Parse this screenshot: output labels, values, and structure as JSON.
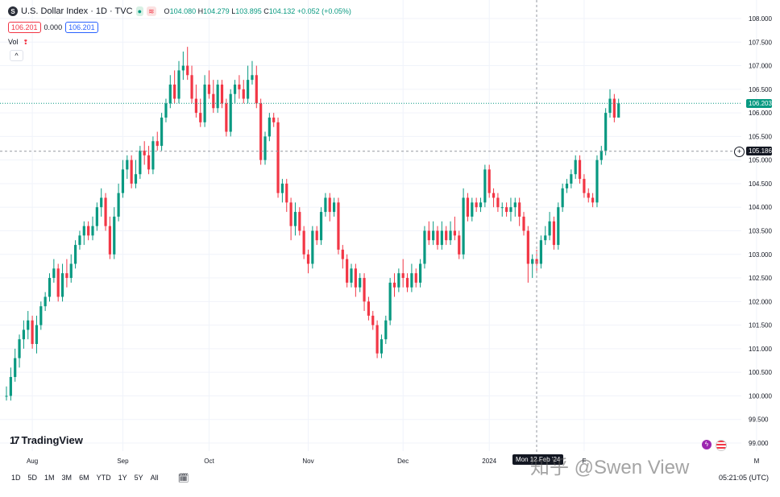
{
  "header": {
    "symbol_icon": "S",
    "title": "U.S. Dollar Index · 1D · TVC",
    "market_open_icon": "market-status-icon",
    "ohlc": {
      "o": "104.080",
      "h": "104.279",
      "l": "103.895",
      "c": "104.132",
      "chg": "+0.052 (+0.05%)"
    },
    "sell_price": "106.201",
    "spread": "0.000",
    "buy_price": "106.201",
    "vol_label": "Vol",
    "collapse_glyph": "^"
  },
  "logo_text": "TradingView",
  "crosshair_date": "Mon 12 Feb '24",
  "last_price_label": "106.203",
  "crosshair_price_label": "105.186",
  "watermark": "知乎 @Swen View",
  "timeframes": [
    "1D",
    "5D",
    "1M",
    "3M",
    "6M",
    "YTD",
    "1Y",
    "5Y",
    "All"
  ],
  "clock": "05:21:05 (UTC)",
  "colors": {
    "up": "#089981",
    "down": "#f23645"
  },
  "chart_data": {
    "type": "candlestick",
    "y_ticks": [
      "108.000",
      "107.500",
      "107.000",
      "106.500",
      "106.000",
      "105.500",
      "105.000",
      "104.500",
      "104.000",
      "103.500",
      "103.000",
      "102.500",
      "102.000",
      "101.500",
      "101.000",
      "100.500",
      "100.000",
      "99.500",
      "99.000"
    ],
    "ylim": [
      99.0,
      108.0
    ],
    "x_labels": [
      {
        "label": "Aug",
        "i": 6
      },
      {
        "label": "Sep",
        "i": 27
      },
      {
        "label": "Oct",
        "i": 47
      },
      {
        "label": "Nov",
        "i": 70
      },
      {
        "label": "Dec",
        "i": 92
      },
      {
        "label": "2024",
        "i": 112
      },
      {
        "label": "F",
        "i": 134
      },
      {
        "label": "M",
        "i": 174
      }
    ],
    "candles": [
      [
        100,
        100,
        99.9,
        100.2
      ],
      [
        100,
        100.4,
        99.9,
        100.6
      ],
      [
        100.4,
        100.8,
        100.3,
        101
      ],
      [
        100.8,
        101.2,
        100.6,
        101.3
      ],
      [
        101.2,
        101.4,
        101,
        101.6
      ],
      [
        101.4,
        101.6,
        101.2,
        101.8
      ],
      [
        101.6,
        101.1,
        101,
        101.7
      ],
      [
        101.1,
        101.5,
        100.9,
        101.7
      ],
      [
        101.5,
        101.9,
        101.4,
        102
      ],
      [
        101.9,
        102.1,
        101.8,
        102.2
      ],
      [
        102.1,
        102.5,
        102,
        102.6
      ],
      [
        102.5,
        102.7,
        102.4,
        102.9
      ],
      [
        102.7,
        102.1,
        102,
        102.8
      ],
      [
        102.1,
        102.6,
        102,
        102.8
      ],
      [
        102.6,
        102.5,
        102.3,
        102.9
      ],
      [
        102.5,
        102.8,
        102.4,
        103
      ],
      [
        102.8,
        103.2,
        102.7,
        103.3
      ],
      [
        103.2,
        103.4,
        103.1,
        103.5
      ],
      [
        103.4,
        103.6,
        103.2,
        103.7
      ],
      [
        103.6,
        103.4,
        103.3,
        103.7
      ],
      [
        103.4,
        103.6,
        103.3,
        103.8
      ],
      [
        103.6,
        104,
        103.5,
        104.1
      ],
      [
        104,
        104.2,
        103.8,
        104.4
      ],
      [
        104.2,
        103.6,
        103.5,
        104.3
      ],
      [
        103.6,
        103,
        102.9,
        103.8
      ],
      [
        103,
        103.8,
        102.9,
        104
      ],
      [
        103.8,
        104.3,
        103.7,
        104.5
      ],
      [
        104.3,
        104.8,
        104.2,
        105
      ],
      [
        104.8,
        105,
        104.6,
        105.1
      ],
      [
        105,
        104.5,
        104.4,
        105.1
      ],
      [
        104.5,
        104.7,
        104.4,
        105
      ],
      [
        104.7,
        105.2,
        104.6,
        105.3
      ],
      [
        105.2,
        105.1,
        104.9,
        105.4
      ],
      [
        105.1,
        104.8,
        104.7,
        105.3
      ],
      [
        104.8,
        105.4,
        104.7,
        105.5
      ],
      [
        105.4,
        105.3,
        105.2,
        105.6
      ],
      [
        105.3,
        105.9,
        105.2,
        106
      ],
      [
        105.9,
        106.2,
        105.8,
        106.3
      ],
      [
        106.2,
        106.6,
        106.1,
        106.8
      ],
      [
        106.6,
        106.3,
        106.2,
        106.9
      ],
      [
        106.3,
        106.9,
        106.2,
        107.1
      ],
      [
        106.9,
        107,
        106.7,
        107.3
      ],
      [
        107,
        106.8,
        106.7,
        107.4
      ],
      [
        106.8,
        106.3,
        106.2,
        107
      ],
      [
        106.3,
        106,
        105.9,
        106.6
      ],
      [
        106,
        105.8,
        105.7,
        106.3
      ],
      [
        105.8,
        106.6,
        105.7,
        106.8
      ],
      [
        106.6,
        106.4,
        106.3,
        106.9
      ],
      [
        106.4,
        106.1,
        106,
        106.7
      ],
      [
        106.1,
        106.6,
        106,
        106.7
      ],
      [
        106.6,
        106.2,
        106.1,
        106.7
      ],
      [
        106.2,
        105.6,
        105.5,
        106.3
      ],
      [
        105.6,
        106.4,
        105.5,
        106.5
      ],
      [
        106.4,
        106.6,
        106.2,
        106.7
      ],
      [
        106.6,
        106.5,
        106.3,
        106.8
      ],
      [
        106.5,
        106.3,
        106.2,
        106.7
      ],
      [
        106.3,
        106.7,
        106.2,
        107
      ],
      [
        106.7,
        106.8,
        106.6,
        107.1
      ],
      [
        106.8,
        106.2,
        106.1,
        107
      ],
      [
        106.2,
        105,
        104.9,
        106.3
      ],
      [
        105,
        105.5,
        104.9,
        105.6
      ],
      [
        105.5,
        105.9,
        105.4,
        106
      ],
      [
        105.9,
        105.8,
        105.7,
        106
      ],
      [
        105.8,
        104.3,
        104.2,
        105.9
      ],
      [
        104.3,
        104.5,
        104.1,
        104.6
      ],
      [
        104.5,
        104.1,
        103.9,
        104.6
      ],
      [
        104.1,
        103.6,
        103.3,
        104.2
      ],
      [
        103.6,
        103.9,
        103.4,
        104.1
      ],
      [
        103.9,
        103.5,
        103.4,
        104
      ],
      [
        103.5,
        103,
        102.9,
        103.6
      ],
      [
        103,
        102.8,
        102.6,
        103.1
      ],
      [
        102.8,
        103.5,
        102.7,
        103.6
      ],
      [
        103.5,
        103.3,
        103.2,
        103.6
      ],
      [
        103.3,
        103.9,
        103.2,
        104
      ],
      [
        103.9,
        104.2,
        103.8,
        104.3
      ],
      [
        104.2,
        103.9,
        103.7,
        104.3
      ],
      [
        103.9,
        104.1,
        103.8,
        104.2
      ],
      [
        104.1,
        103.1,
        103,
        104.2
      ],
      [
        103.1,
        102.9,
        102.7,
        103.2
      ],
      [
        102.9,
        102.4,
        102.3,
        103
      ],
      [
        102.4,
        102.7,
        102.3,
        102.8
      ],
      [
        102.7,
        102.3,
        102.1,
        102.8
      ],
      [
        102.3,
        102.5,
        102.2,
        102.6
      ],
      [
        102.5,
        102,
        101.8,
        102.6
      ],
      [
        102,
        101.7,
        101.6,
        102.1
      ],
      [
        101.7,
        101.5,
        101.4,
        101.8
      ],
      [
        101.5,
        100.9,
        100.8,
        101.6
      ],
      [
        100.9,
        101.2,
        100.8,
        101.3
      ],
      [
        101.2,
        101.6,
        101.1,
        101.7
      ],
      [
        101.6,
        102.4,
        101.5,
        102.5
      ],
      [
        102.4,
        102.3,
        102.1,
        102.6
      ],
      [
        102.3,
        102.6,
        102.2,
        102.7
      ],
      [
        102.6,
        102.5,
        102.3,
        102.9
      ],
      [
        102.5,
        102.3,
        102.2,
        102.6
      ],
      [
        102.3,
        102.6,
        102.2,
        102.8
      ],
      [
        102.6,
        102.4,
        102.3,
        102.7
      ],
      [
        102.4,
        102.8,
        102.3,
        102.9
      ],
      [
        102.8,
        103.5,
        102.7,
        103.6
      ],
      [
        103.5,
        103.3,
        103.2,
        103.7
      ],
      [
        103.3,
        103.5,
        103.2,
        103.7
      ],
      [
        103.5,
        103.2,
        103.1,
        103.6
      ],
      [
        103.2,
        103.5,
        103.1,
        103.7
      ],
      [
        103.5,
        103.3,
        103.2,
        103.6
      ],
      [
        103.3,
        103.5,
        103.2,
        103.7
      ],
      [
        103.5,
        103.4,
        103.3,
        103.8
      ],
      [
        103.4,
        103,
        102.9,
        103.5
      ],
      [
        103,
        104.2,
        102.9,
        104.4
      ],
      [
        104.2,
        103.8,
        103.7,
        104.3
      ],
      [
        103.8,
        104.1,
        103.7,
        104.2
      ],
      [
        104.1,
        104,
        103.9,
        104.2
      ],
      [
        104,
        104.1,
        103.9,
        104.2
      ],
      [
        104.1,
        104.8,
        104,
        104.9
      ],
      [
        104.8,
        104.3,
        104.2,
        104.9
      ],
      [
        104.3,
        104.2,
        104,
        104.4
      ],
      [
        104.2,
        104,
        103.9,
        104.3
      ],
      [
        104,
        104,
        103.8,
        104.1
      ],
      [
        104,
        103.9,
        103.8,
        104.1
      ],
      [
        103.9,
        104,
        103.7,
        104.2
      ],
      [
        104,
        104.1,
        103.8,
        104.2
      ],
      [
        104.1,
        103.8,
        103.6,
        104.2
      ],
      [
        103.8,
        103.5,
        103.4,
        103.9
      ],
      [
        103.5,
        102.8,
        102.4,
        103.6
      ],
      [
        102.8,
        102.9,
        102.5,
        103
      ],
      [
        102.9,
        102.8,
        102.6,
        103.1
      ],
      [
        102.8,
        103.3,
        102.7,
        103.4
      ],
      [
        103.3,
        103.4,
        103.2,
        103.6
      ],
      [
        103.4,
        103.7,
        103.3,
        103.9
      ],
      [
        103.7,
        103.2,
        103.1,
        103.8
      ],
      [
        103.2,
        104,
        103.1,
        104.1
      ],
      [
        104,
        104.4,
        103.9,
        104.5
      ],
      [
        104.4,
        104.5,
        104.3,
        104.6
      ],
      [
        104.5,
        104.7,
        104.4,
        104.8
      ],
      [
        104.7,
        105,
        104.6,
        105.1
      ],
      [
        105,
        104.6,
        104.5,
        105.1
      ],
      [
        104.6,
        104.3,
        104.2,
        104.7
      ],
      [
        104.3,
        104.2,
        104.1,
        104.4
      ],
      [
        104.2,
        104.1,
        104,
        104.3
      ],
      [
        104.1,
        105,
        104,
        105.1
      ],
      [
        105,
        105.2,
        104.9,
        105.3
      ],
      [
        105.2,
        106,
        105.1,
        106.1
      ],
      [
        106,
        106.3,
        105.9,
        106.5
      ],
      [
        106.3,
        105.9,
        105.8,
        106.4
      ],
      [
        105.9,
        106.2,
        105.9,
        106.3
      ]
    ]
  }
}
